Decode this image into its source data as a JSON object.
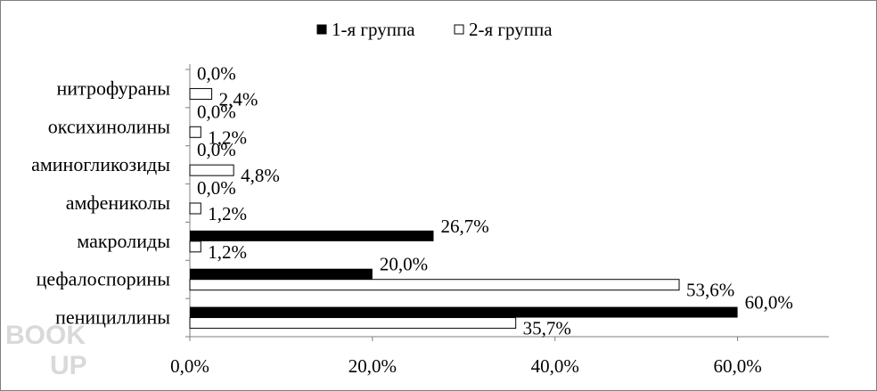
{
  "chart_data": {
    "type": "bar",
    "orientation": "horizontal",
    "categories": [
      "нитрофураны",
      "оксихинолины",
      "аминогликозиды",
      "амфениколы",
      "макролиды",
      "цефалоспорины",
      "пенициллины"
    ],
    "series": [
      {
        "name": "1-я группа",
        "color": "#000000",
        "values": [
          0.0,
          0.0,
          0.0,
          0.0,
          26.7,
          20.0,
          60.0
        ],
        "labels": [
          "0,0%",
          "0,0%",
          "0,0%",
          "0,0%",
          "26,7%",
          "20,0%",
          "60,0%"
        ]
      },
      {
        "name": "2-я группа",
        "color": "#ffffff",
        "values": [
          2.4,
          1.2,
          4.8,
          1.2,
          1.2,
          53.6,
          35.7
        ],
        "labels": [
          "2,4%",
          "1,2%",
          "4,8%",
          "1,2%",
          "1,2%",
          "53,6%",
          "35,7%"
        ]
      }
    ],
    "xlim": [
      0,
      70
    ],
    "xticks": [
      0,
      20,
      40,
      60
    ],
    "xtick_labels": [
      "0,0%",
      "20,0%",
      "40,0%",
      "60,0%"
    ],
    "legend_position": "top",
    "grid": false
  },
  "watermark": {
    "line1": "BOOK",
    "line2": "UP"
  }
}
